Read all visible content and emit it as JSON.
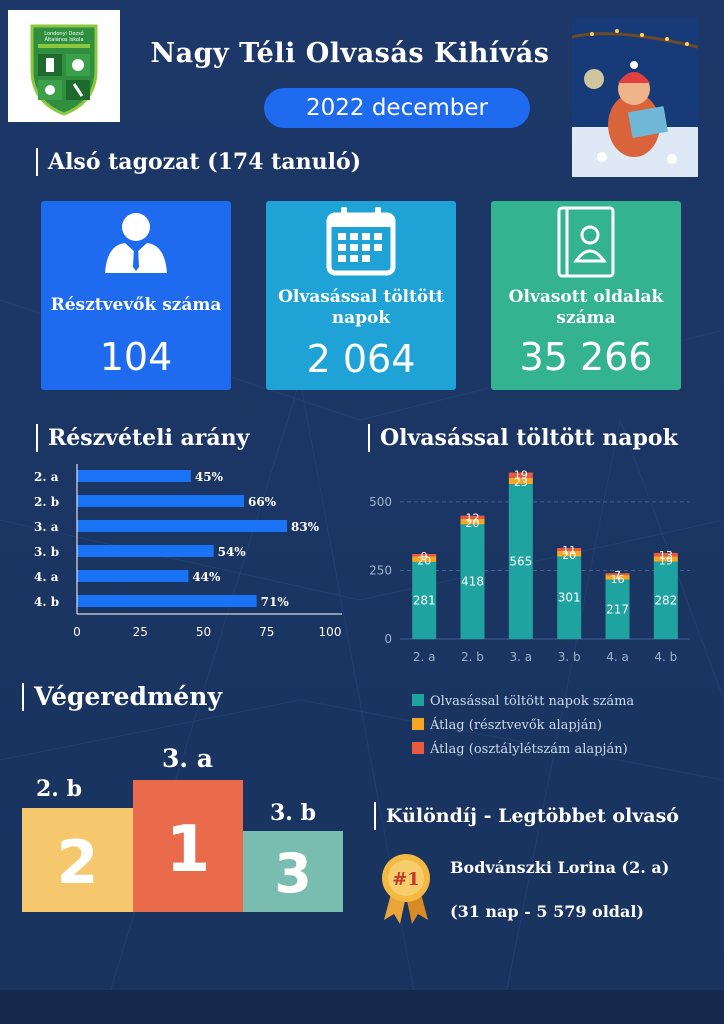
{
  "header": {
    "title": "Nagy Téli Olvasás Kihívás",
    "date": "2022 december",
    "logo_text": "Londonyi Dezső Általános Iskola"
  },
  "section_lower": "Alsó tagozat (174 tanuló)",
  "cards": [
    {
      "label": "Résztvevők száma",
      "value": "104",
      "icon": "person-icon",
      "color": "#1f6bf0"
    },
    {
      "label": "Olvasással töltött napok",
      "value": "2 064",
      "icon": "calendar-icon",
      "color": "#1fa3d6"
    },
    {
      "label": "Olvasott oldalak száma",
      "value": "35 266",
      "icon": "contact-book-icon",
      "color": "#33b38f"
    }
  ],
  "colors": {
    "bar_blue": "#1a73f5",
    "teal": "#1ea3a0",
    "orange": "#f5a623",
    "red": "#ea5a3f"
  },
  "chart_data": [
    {
      "type": "bar",
      "orientation": "horizontal",
      "title": "Részvételi arány",
      "categories": [
        "2. a",
        "2. b",
        "3. a",
        "3. b",
        "4. a",
        "4. b"
      ],
      "values": [
        45,
        66,
        83,
        54,
        44,
        71
      ],
      "value_labels": [
        "45%",
        "66%",
        "83%",
        "54%",
        "44%",
        "71%"
      ],
      "xticks": [
        "0",
        "25",
        "50",
        "75",
        "100"
      ],
      "xlim": [
        0,
        100
      ]
    },
    {
      "type": "bar",
      "stacked": true,
      "title": "Olvasással töltött napok",
      "categories": [
        "2. a",
        "2. b",
        "3. a",
        "3. b",
        "4. a",
        "4. b"
      ],
      "series": [
        {
          "name": "Olvasással töltött napok száma",
          "values": [
            281,
            418,
            565,
            301,
            217,
            282
          ]
        },
        {
          "name": "Átlag (résztvevők alapján)",
          "values": [
            20,
            20,
            23,
            20,
            16,
            19
          ]
        },
        {
          "name": "Átlag (osztálylétszám alapján)",
          "values": [
            9,
            12,
            19,
            11,
            7,
            13
          ]
        }
      ],
      "yticks": [
        "0",
        "250",
        "500"
      ],
      "ylim": [
        0,
        620
      ],
      "grid": true,
      "legend": "bottom"
    }
  ],
  "results": {
    "title": "Végeredmény",
    "podium": [
      {
        "class": "2. b",
        "place": "2",
        "color": "#f6c86e"
      },
      {
        "class": "3. a",
        "place": "1",
        "color": "#ea6a4c"
      },
      {
        "class": "3. b",
        "place": "3",
        "color": "#79bdb0"
      }
    ]
  },
  "special": {
    "title": "Különdíj - Legtöbbet olvasó",
    "name": "Bodvánszki Lorina (2. a)",
    "detail": "(31 nap - 5 579 oldal)",
    "badge_text": "#1",
    "icon": "award-ribbon-icon"
  }
}
